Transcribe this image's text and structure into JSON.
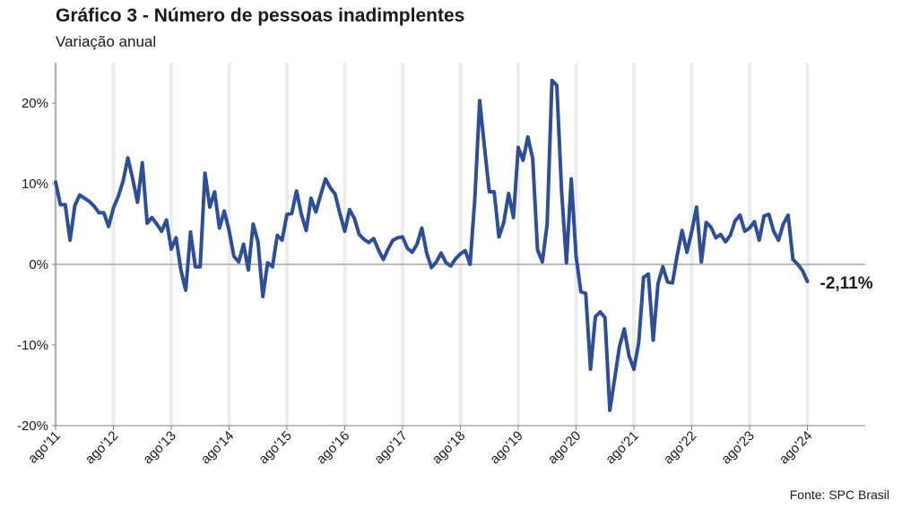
{
  "header": {
    "title": "Gráfico 3 - Número de pessoas inadimplentes",
    "subtitle": "Variação anual"
  },
  "footer": {
    "source": "Fonte: SPC Brasil"
  },
  "colors": {
    "line": "#2e4f97",
    "zero_line": "#a6a6a6",
    "grid": "#ececec",
    "axis": "#808080"
  },
  "chart_data": {
    "type": "line",
    "title": "Gráfico 3 - Número de pessoas inadimplentes",
    "subtitle": "Variação anual",
    "xlabel": "",
    "ylabel": "",
    "ylim": [
      -20,
      25
    ],
    "yticks": [
      -20,
      -10,
      0,
      10,
      20
    ],
    "ytick_labels": [
      "-20%",
      "-10%",
      "0%",
      "10%",
      "20%"
    ],
    "x_start": "2011-08",
    "x_end": "2024-08",
    "x_axis_end": "2025-08",
    "x_ticks": [
      "2011-08",
      "2012-08",
      "2013-08",
      "2014-08",
      "2015-08",
      "2016-08",
      "2017-08",
      "2018-08",
      "2019-08",
      "2020-08",
      "2021-08",
      "2022-08",
      "2023-08",
      "2024-08"
    ],
    "xtick_labels": [
      "ago'11",
      "ago'12",
      "ago'13",
      "ago'14",
      "ago'15",
      "ago'16",
      "ago'17",
      "ago'18",
      "ago'19",
      "ago'20",
      "ago'21",
      "ago'22",
      "ago'23",
      "ago'24"
    ],
    "grid": "vertical",
    "end_label": "-2,11%",
    "series": [
      {
        "values": [
          10.2,
          7.4,
          7.4,
          3.0,
          7.3,
          8.6,
          8.2,
          7.8,
          7.2,
          6.4,
          6.4,
          4.7,
          7.0,
          8.4,
          10.3,
          13.2,
          10.6,
          7.7,
          12.6,
          5.1,
          5.8,
          5.0,
          4.1,
          5.5,
          1.9,
          3.3,
          -0.7,
          -3.2,
          4.0,
          -0.3,
          -0.3,
          11.3,
          7.1,
          9.0,
          4.5,
          6.6,
          4.2,
          1.0,
          0.3,
          2.5,
          -0.7,
          5.0,
          2.8,
          -4.0,
          0.2,
          -0.3,
          3.6,
          3.0,
          6.2,
          6.3,
          9.1,
          6.2,
          4.2,
          8.2,
          6.5,
          8.6,
          10.6,
          9.5,
          8.7,
          6.3,
          4.1,
          6.8,
          5.7,
          3.7,
          3.1,
          2.7,
          3.2,
          1.8,
          0.6,
          1.9,
          3.0,
          3.3,
          3.4,
          2.0,
          1.5,
          2.5,
          4.5,
          1.4,
          -0.4,
          0.3,
          1.4,
          0.2,
          -0.2,
          0.7,
          1.3,
          1.7,
          0.0,
          8.2,
          20.3,
          14.5,
          9.0,
          9.0,
          3.4,
          5.2,
          8.8,
          5.8,
          14.5,
          12.9,
          15.8,
          13.1,
          1.8,
          0.3,
          5.0,
          22.8,
          22.2,
          9.0,
          0.2,
          10.6,
          1.0,
          -3.4,
          -3.6,
          -13.0,
          -6.5,
          -5.9,
          -6.6,
          -18.1,
          -14.2,
          -10.2,
          -8.0,
          -11.4,
          -13.0,
          -9.7,
          -1.6,
          -1.2,
          -9.4,
          -2.4,
          -0.3,
          -2.2,
          -2.3,
          1.2,
          4.2,
          1.5,
          4.1,
          7.1,
          0.3,
          5.2,
          4.6,
          3.3,
          3.7,
          2.8,
          3.6,
          5.4,
          6.1,
          4.1,
          4.5,
          5.3,
          3.0,
          6.0,
          6.2,
          4.1,
          3.0,
          5.0,
          6.1,
          0.6,
          0.0,
          -0.8,
          -2.11
        ]
      }
    ]
  }
}
